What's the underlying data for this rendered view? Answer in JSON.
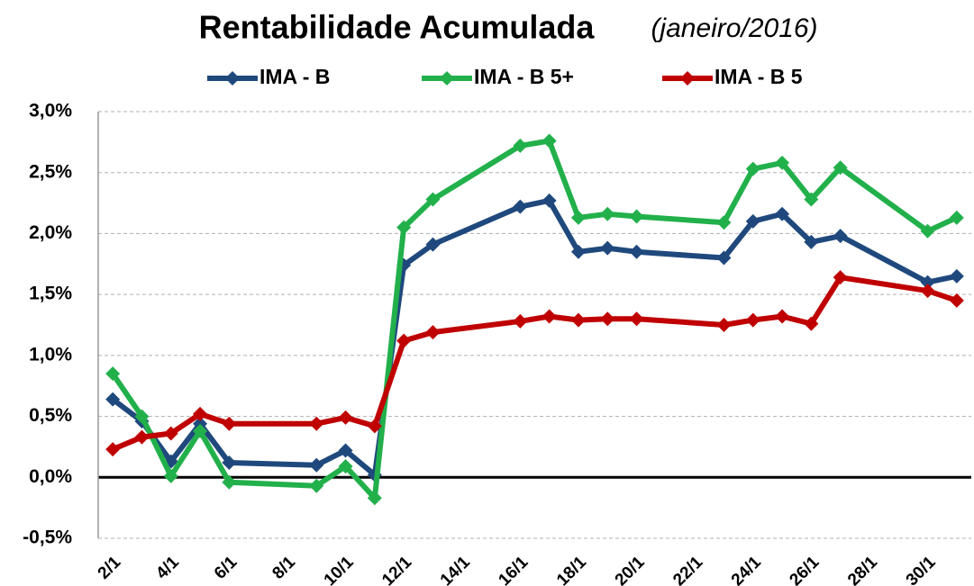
{
  "chart_data": {
    "type": "line",
    "title": "Rentabilidade Acumulada",
    "subtitle": "(janeiro/2016)",
    "x": [
      2,
      3,
      4,
      5,
      6,
      9,
      10,
      11,
      12,
      13,
      16,
      17,
      18,
      19,
      20,
      23,
      24,
      25,
      26,
      27,
      30,
      31
    ],
    "series": [
      {
        "name": "IMA - B",
        "color": "#1f497d",
        "values": [
          0.64,
          0.46,
          0.13,
          0.44,
          0.12,
          0.1,
          0.22,
          0.02,
          1.74,
          1.91,
          2.22,
          2.27,
          1.85,
          1.88,
          1.85,
          1.8,
          2.1,
          2.16,
          1.93,
          1.98,
          1.6,
          1.65
        ]
      },
      {
        "name": "IMA - B 5+",
        "color": "#22b04b",
        "values": [
          0.85,
          0.5,
          0.01,
          0.38,
          -0.04,
          -0.07,
          0.09,
          -0.17,
          2.05,
          2.28,
          2.72,
          2.76,
          2.13,
          2.16,
          2.14,
          2.09,
          2.53,
          2.58,
          2.28,
          2.54,
          2.02,
          2.13
        ]
      },
      {
        "name": "IMA - B 5",
        "color": "#c00000",
        "values": [
          0.23,
          0.33,
          0.36,
          0.52,
          0.44,
          0.44,
          0.49,
          0.42,
          1.12,
          1.19,
          1.28,
          1.32,
          1.29,
          1.3,
          1.3,
          1.25,
          1.29,
          1.32,
          1.26,
          1.64,
          1.53,
          1.45
        ]
      }
    ],
    "xlim": [
      1.5,
      31.5
    ],
    "xticks": [
      {
        "value": 2,
        "label": "2/1"
      },
      {
        "value": 4,
        "label": "4/1"
      },
      {
        "value": 6,
        "label": "6/1"
      },
      {
        "value": 8,
        "label": "8/1"
      },
      {
        "value": 10,
        "label": "10/1"
      },
      {
        "value": 12,
        "label": "12/1"
      },
      {
        "value": 14,
        "label": "14/1"
      },
      {
        "value": 16,
        "label": "16/1"
      },
      {
        "value": 18,
        "label": "18/1"
      },
      {
        "value": 20,
        "label": "20/1"
      },
      {
        "value": 22,
        "label": "22/1"
      },
      {
        "value": 24,
        "label": "24/1"
      },
      {
        "value": 26,
        "label": "26/1"
      },
      {
        "value": 28,
        "label": "28/1"
      },
      {
        "value": 30,
        "label": "30/1"
      }
    ],
    "ylim": [
      -0.5,
      3.0
    ],
    "yticks": [
      {
        "value": -0.5,
        "label": "-0,5%"
      },
      {
        "value": 0,
        "label": "0,0%"
      },
      {
        "value": 0.5,
        "label": "0,5%"
      },
      {
        "value": 1.0,
        "label": "1,0%"
      },
      {
        "value": 1.5,
        "label": "1,5%"
      },
      {
        "value": 2.0,
        "label": "2,0%"
      },
      {
        "value": 2.5,
        "label": "2,5%"
      },
      {
        "value": 3.0,
        "label": "3,0%"
      }
    ],
    "grid": true,
    "legend": "top"
  }
}
